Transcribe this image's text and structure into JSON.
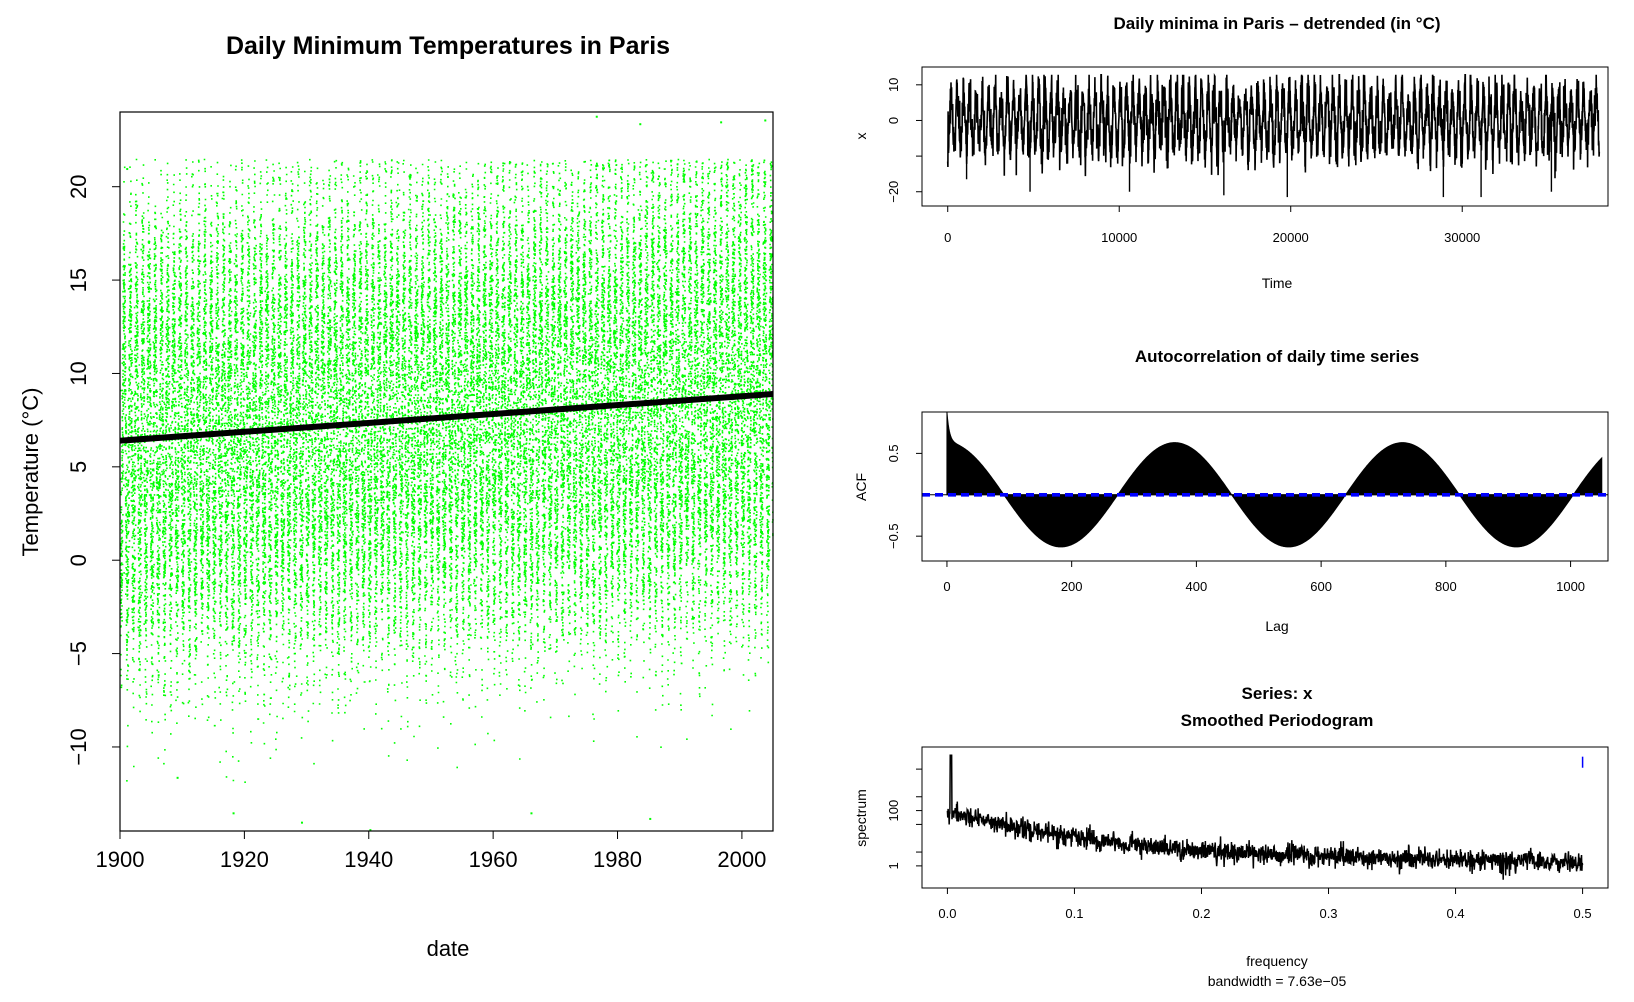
{
  "chart_data": [
    {
      "id": "main",
      "type": "scatter",
      "title": "Daily Minimum Temperatures in Paris",
      "xlabel": "date",
      "ylabel": "Temperature (°C)",
      "xlim": [
        1900,
        2005
      ],
      "ylim": [
        -14.5,
        24
      ],
      "xticks": [
        1900,
        1920,
        1940,
        1960,
        1980,
        2000
      ],
      "yticks": [
        -10,
        -5,
        0,
        5,
        10,
        15,
        20
      ],
      "point_color": "#00ff00",
      "series": [
        {
          "type": "scatter",
          "approx_points": 38000,
          "description_values": {
            "x_start": 1900,
            "x_end": 2005,
            "seasonal_mean_start": 6.4,
            "seasonal_mean_end": 8.9,
            "seasonal_amplitude": 7.5
          },
          "extremes_high": [
            {
              "x": 1976.5,
              "y": 23.8
            },
            {
              "x": 2003.6,
              "y": 23.6
            },
            {
              "x": 1996.5,
              "y": 23.5
            },
            {
              "x": 1983.5,
              "y": 23.4
            },
            {
              "x": 1901,
              "y": 21.0
            }
          ],
          "extremes_low": [
            {
              "x": 1929.1,
              "y": -14.0
            },
            {
              "x": 1940.1,
              "y": -14.4
            },
            {
              "x": 1918.1,
              "y": -13.5
            },
            {
              "x": 1985.1,
              "y": -13.8
            },
            {
              "x": 1966.0,
              "y": -13.5
            },
            {
              "x": 1909.1,
              "y": -11.6
            }
          ]
        }
      ],
      "trend_line": {
        "x": [
          1900,
          2005
        ],
        "y": [
          6.4,
          8.9
        ],
        "color": "#000000"
      }
    },
    {
      "id": "detrended",
      "type": "line",
      "title": "Daily minima in Paris – detrended (in °C)",
      "xlabel": "Time",
      "ylabel": "x",
      "xlim": [
        -1500,
        38500
      ],
      "ylim": [
        -24,
        15
      ],
      "xticks": [
        0,
        10000,
        20000,
        30000
      ],
      "yticks": [
        -20,
        -10,
        0,
        10
      ],
      "ytick_labels": [
        "-20",
        "",
        "0",
        "10"
      ],
      "series": [
        {
          "x_start": 0,
          "x_end": 38000,
          "period": 365.25,
          "upper_envelope_approx": 13,
          "lower_envelope_approx": -20,
          "minima": [
            {
              "x": 1100,
              "y": -16.5
            },
            {
              "x": 4800,
              "y": -20
            },
            {
              "x": 10600,
              "y": -20
            },
            {
              "x": 16100,
              "y": -21
            },
            {
              "x": 19800,
              "y": -21.5
            },
            {
              "x": 28900,
              "y": -21.5
            },
            {
              "x": 31100,
              "y": -21.5
            },
            {
              "x": 35200,
              "y": -20
            }
          ]
        }
      ]
    },
    {
      "id": "acf",
      "type": "bar",
      "title": "Autocorrelation of daily time series",
      "xlabel": "Lag",
      "ylabel": "ACF",
      "xlim": [
        -40,
        1060
      ],
      "ylim": [
        -0.8,
        1.0
      ],
      "xticks": [
        0,
        200,
        400,
        600,
        800,
        1000
      ],
      "yticks": [
        -0.5,
        0.5
      ],
      "series": [
        {
          "lag_start": 0,
          "lag_end": 1050,
          "acf_at_lag0": 1.0,
          "seasonal_amplitude": 0.63,
          "period": 365.25,
          "confidence_bound": 0.01,
          "confidence_color": "#0000ff"
        }
      ]
    },
    {
      "id": "spectrum",
      "type": "line",
      "title": "Series: x",
      "subtitle": "Smoothed Periodogram",
      "xlabel": "frequency",
      "xlabel2": "bandwidth = 7.63e−05",
      "ylabel": "spectrum",
      "log_y": true,
      "xlim": [
        -0.02,
        0.52
      ],
      "ylim_log10": [
        -0.8,
        4.3
      ],
      "xticks": [
        0.0,
        0.1,
        0.2,
        0.3,
        0.4,
        0.5
      ],
      "xtick_labels": [
        "0.0",
        "0.1",
        "0.2",
        "0.3",
        "0.4",
        "0.5"
      ],
      "yticks": [
        1,
        100
      ],
      "ci_bar_color": "#0000ff",
      "series": [
        {
          "freq_start": 0.0,
          "freq_end": 0.5,
          "peak_freq": 0.00274,
          "peak_value": 10000,
          "start_level": 100,
          "end_level": 1.3
        }
      ]
    }
  ]
}
